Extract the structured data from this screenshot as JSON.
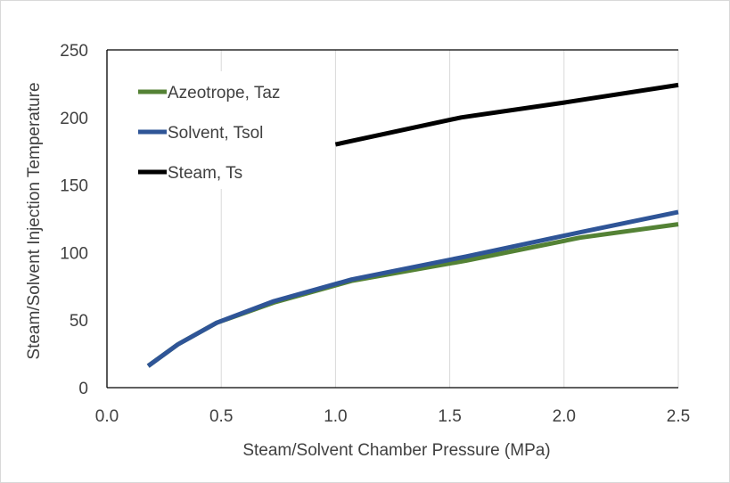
{
  "chart_data": {
    "type": "line",
    "title": "",
    "xlabel": "Steam/Solvent Chamber Pressure (MPa)",
    "ylabel": "Steam/Solvent Injection Temperature",
    "xlim": [
      0.0,
      2.5
    ],
    "ylim": [
      0,
      250
    ],
    "x_ticks": [
      0.0,
      0.5,
      1.0,
      1.5,
      2.0,
      2.5
    ],
    "x_tick_labels": [
      "0.0",
      "0.5",
      "1.0",
      "1.5",
      "2.0",
      "2.5"
    ],
    "y_ticks": [
      0,
      50,
      100,
      150,
      200,
      250
    ],
    "y_tick_labels": [
      "0",
      "50",
      "100",
      "150",
      "200",
      "250"
    ],
    "grid": "vertical",
    "legend_position": "top-left",
    "series": [
      {
        "name": "Azeotrope, Taz",
        "color": "#548235",
        "x": [
          0.18,
          0.31,
          0.48,
          0.73,
          1.07,
          1.57,
          2.07,
          2.5
        ],
        "y": [
          16,
          32,
          48,
          63,
          79,
          94,
          111,
          121
        ]
      },
      {
        "name": "Solvent, Tsol",
        "color": "#2f5597",
        "x": [
          0.18,
          0.31,
          0.48,
          0.73,
          1.07,
          1.57,
          2.07,
          2.5
        ],
        "y": [
          16,
          32,
          48,
          64,
          80,
          97,
          115,
          130
        ]
      },
      {
        "name": "Steam, Ts",
        "color": "#000000",
        "x": [
          1.0,
          1.55,
          2.0,
          2.5
        ],
        "y": [
          180,
          200,
          211,
          224
        ]
      }
    ]
  }
}
